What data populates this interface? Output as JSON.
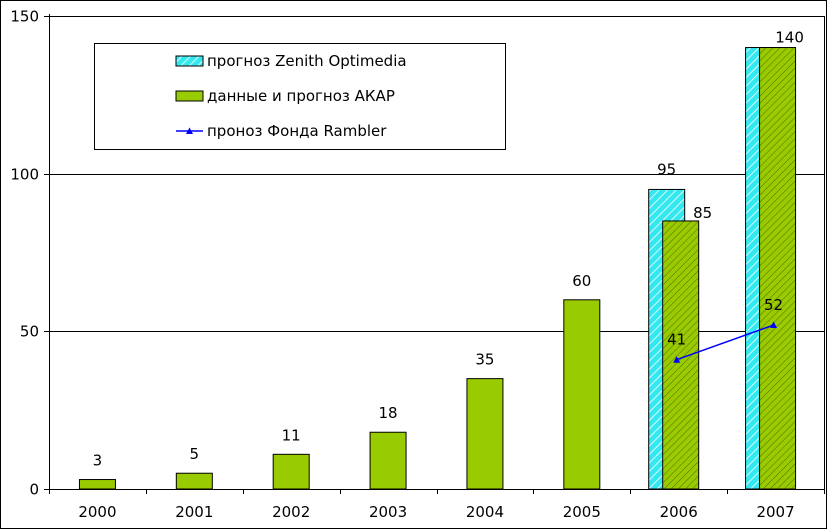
{
  "chart_data": {
    "type": "bar",
    "categories": [
      "2000",
      "2001",
      "2002",
      "2003",
      "2004",
      "2005",
      "2006",
      "2007"
    ],
    "ylim": [
      0,
      150
    ],
    "yticks": [
      0,
      50,
      100,
      150
    ],
    "grid": true,
    "legend_position": "top-left",
    "series": [
      {
        "name": "прогноз Zenith Optimedia",
        "kind": "bar",
        "fill_color": "#33e8ee",
        "values": [
          null,
          null,
          null,
          null,
          null,
          null,
          95,
          140
        ],
        "labels": [
          "",
          "",
          "",
          "",
          "",
          "",
          "95",
          ""
        ]
      },
      {
        "name": "данные и прогноз АКАР",
        "kind": "bar",
        "fill_color": "#99cc00",
        "values": [
          3,
          5,
          11,
          18,
          35,
          60,
          85,
          140
        ],
        "labels": [
          "3",
          "5",
          "11",
          "18",
          "35",
          "60",
          "85",
          "140"
        ]
      },
      {
        "name": "проноз Фонда Rambler",
        "kind": "line",
        "line_color": "#0000ff",
        "values": [
          null,
          null,
          null,
          null,
          null,
          null,
          41,
          52
        ],
        "labels": [
          "",
          "",
          "",
          "",
          "",
          "",
          "41",
          "52"
        ]
      }
    ]
  }
}
